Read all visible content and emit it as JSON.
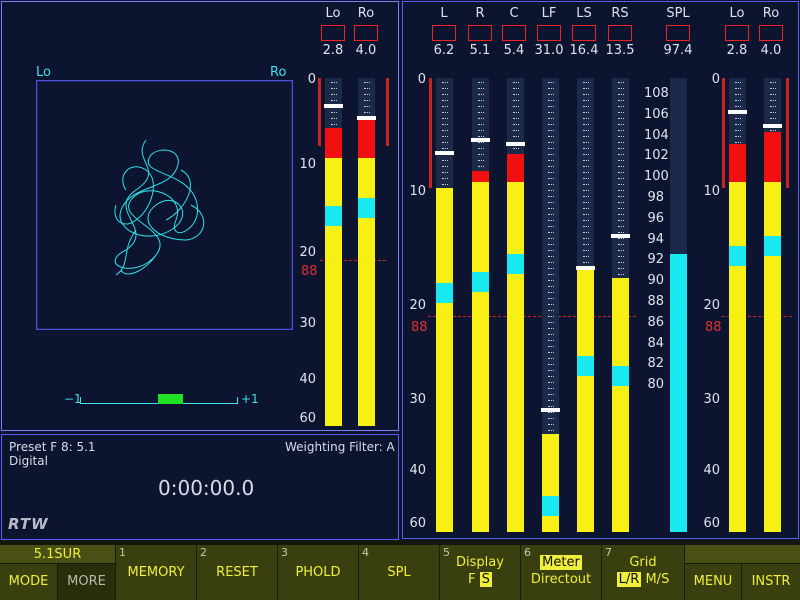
{
  "lissajous": {
    "left_label": "Lo",
    "right_label": "Ro",
    "corr_min": "−1",
    "corr_max": "+1",
    "correlation": 0.0
  },
  "left_meters": {
    "channels": [
      {
        "label": "Lo",
        "value": "2.8"
      },
      {
        "label": "Ro",
        "value": "4.0"
      }
    ],
    "scale": [
      "0",
      "10",
      "20",
      "30",
      "40",
      "60"
    ],
    "ref_label": "88"
  },
  "info": {
    "preset": "Preset F 8: 5.1",
    "source": "Digital",
    "weighting": "Weighting Filter: A",
    "timer": "0:00:00.0",
    "logo": "RTW"
  },
  "surround_meters": {
    "channels": [
      {
        "label": "L",
        "value": "6.2"
      },
      {
        "label": "R",
        "value": "5.1"
      },
      {
        "label": "C",
        "value": "5.4"
      },
      {
        "label": "LF",
        "value": "31.0"
      },
      {
        "label": "LS",
        "value": "16.4"
      },
      {
        "label": "RS",
        "value": "13.5"
      }
    ],
    "scale": [
      "0",
      "10",
      "20",
      "30",
      "40",
      "60"
    ],
    "ref_label": "88"
  },
  "spl": {
    "label": "SPL",
    "value": "97.4",
    "scale": [
      "108",
      "106",
      "104",
      "102",
      "100",
      "98",
      "96",
      "94",
      "92",
      "90",
      "88",
      "86",
      "84",
      "82",
      "80"
    ]
  },
  "right_meters": {
    "channels": [
      {
        "label": "Lo",
        "value": "2.8"
      },
      {
        "label": "Ro",
        "value": "4.0"
      }
    ],
    "scale": [
      "0",
      "10",
      "20",
      "30",
      "40",
      "60"
    ],
    "ref_label": "88"
  },
  "softkeys": {
    "mode_top": "5.1SUR",
    "mode": "MODE",
    "more": "MORE",
    "k1_num": "1",
    "k1": "MEMORY",
    "k2_num": "2",
    "k2": "RESET",
    "k3_num": "3",
    "k3": "PHOLD",
    "k4_num": "4",
    "k4": "SPL",
    "k5_num": "5",
    "k5_top": "Display",
    "k5_a": "F",
    "k5_b": "S",
    "k6_num": "6",
    "k6_top": "Meter",
    "k6_bottom": "Directout",
    "k7_num": "7",
    "k7_top": "Grid",
    "k7_a": "L/R",
    "k7_b": "M/S",
    "menu": "MENU",
    "instr": "INSTR"
  }
}
